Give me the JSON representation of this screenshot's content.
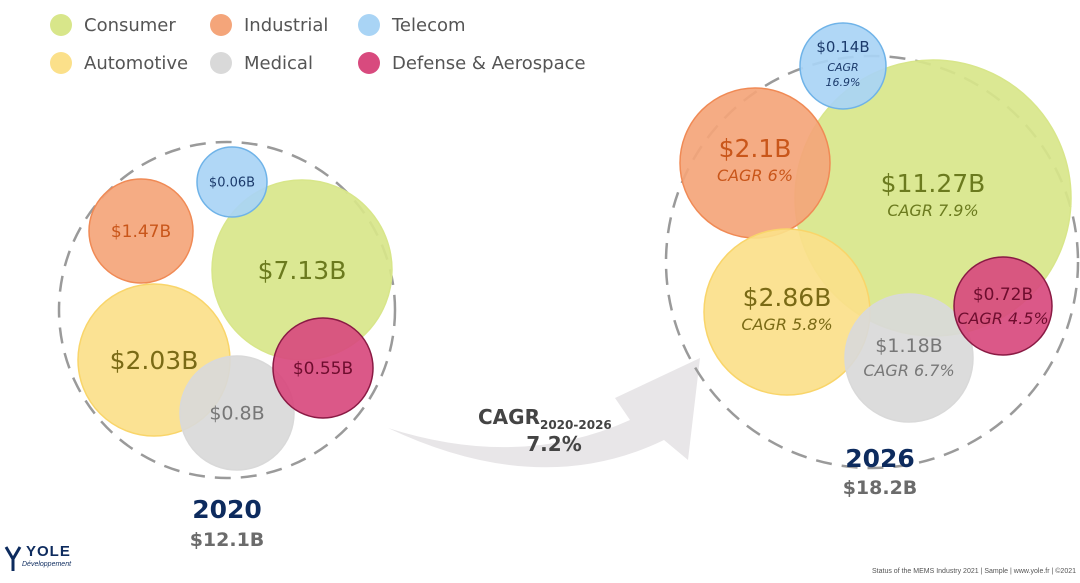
{
  "chart_data": {
    "type": "bubble",
    "legend": [
      {
        "name": "Consumer",
        "color": "#d8e68a"
      },
      {
        "name": "Industrial",
        "color": "#f4a57a"
      },
      {
        "name": "Telecom",
        "color": "#a9d4f5"
      },
      {
        "name": "Automotive",
        "color": "#fbe08a"
      },
      {
        "name": "Medical",
        "color": "#d9d9d9"
      },
      {
        "name": "Defense & Aerospace",
        "color": "#d84a7e"
      }
    ],
    "groups": [
      {
        "year": "2020",
        "total": "$12.1B",
        "bubbles": [
          {
            "segment": "Consumer",
            "value": 7.13,
            "label": "$7.13B",
            "cagr": ""
          },
          {
            "segment": "Industrial",
            "value": 1.47,
            "label": "$1.47B",
            "cagr": ""
          },
          {
            "segment": "Telecom",
            "value": 0.06,
            "label": "$0.06B",
            "cagr": ""
          },
          {
            "segment": "Automotive",
            "value": 2.03,
            "label": "$2.03B",
            "cagr": ""
          },
          {
            "segment": "Medical",
            "value": 0.8,
            "label": "$0.8B",
            "cagr": ""
          },
          {
            "segment": "Defense & Aerospace",
            "value": 0.55,
            "label": "$0.55B",
            "cagr": ""
          }
        ]
      },
      {
        "year": "2026",
        "total": "$18.2B",
        "bubbles": [
          {
            "segment": "Consumer",
            "value": 11.27,
            "label": "$11.27B",
            "cagr": "CAGR 7.9%"
          },
          {
            "segment": "Industrial",
            "value": 2.1,
            "label": "$2.1B",
            "cagr": "CAGR 6%"
          },
          {
            "segment": "Telecom",
            "value": 0.14,
            "label": "$0.14B",
            "cagr": "CAGR",
            "cagr2": "16.9%"
          },
          {
            "segment": "Automotive",
            "value": 2.86,
            "label": "$2.86B",
            "cagr": "CAGR 5.8%"
          },
          {
            "segment": "Medical",
            "value": 1.18,
            "label": "$1.18B",
            "cagr": "CAGR 6.7%"
          },
          {
            "segment": "Defense & Aerospace",
            "value": 0.72,
            "label": "$0.72B",
            "cagr": "CAGR 4.5%"
          }
        ]
      }
    ],
    "arrow": {
      "label": "CAGR",
      "subscript": "2020-2026",
      "value": "7.2%"
    }
  },
  "footer": "Status of the MEMS Industry 2021 | Sample | www.yole.fr | ©2021",
  "logo": {
    "word": "YOLE",
    "sub": "Développement"
  }
}
